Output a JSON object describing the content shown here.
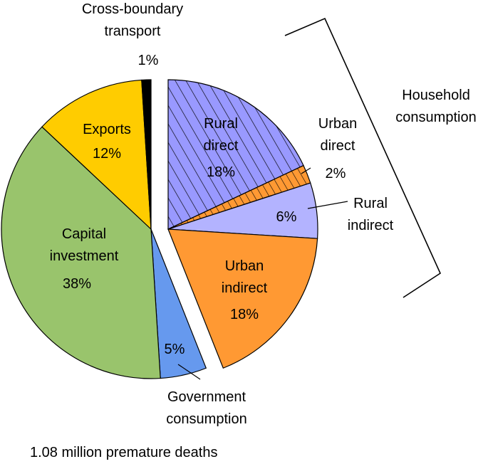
{
  "chart_data": {
    "type": "pie",
    "slices": [
      {
        "name": "Rural direct",
        "label_lines": [
          "Rural",
          "direct"
        ],
        "value_label": "18%",
        "value": 18,
        "color": "#9999ff",
        "pattern": "diagonal-hatch",
        "exploded": true
      },
      {
        "name": "Urban direct",
        "label_lines": [
          "Urban",
          "direct"
        ],
        "value_label": "2%",
        "value": 2,
        "color": "#ff9933",
        "pattern": "diagonal-hatch",
        "exploded": true
      },
      {
        "name": "Rural indirect",
        "label_lines": [
          "Rural",
          "indirect"
        ],
        "value_label": "6%",
        "value": 6,
        "color": "#b3b3ff",
        "pattern": "solid",
        "exploded": true
      },
      {
        "name": "Urban indirect",
        "label_lines": [
          "Urban",
          "indirect"
        ],
        "value_label": "18%",
        "value": 18,
        "color": "#ff9933",
        "pattern": "solid",
        "exploded": true
      },
      {
        "name": "Government consumption",
        "label_lines": [
          "Government",
          "consumption"
        ],
        "value_label": "5%",
        "value": 5,
        "color": "#6699ee",
        "pattern": "solid",
        "exploded": false
      },
      {
        "name": "Capital investment",
        "label_lines": [
          "Capital",
          "investment"
        ],
        "value_label": "38%",
        "value": 38,
        "color": "#99c46c",
        "pattern": "solid",
        "exploded": false
      },
      {
        "name": "Exports",
        "label_lines": [
          "Exports"
        ],
        "value_label": "12%",
        "value": 12,
        "color": "#ffcc00",
        "pattern": "solid",
        "exploded": false
      },
      {
        "name": "Cross-boundary transport",
        "label_lines": [
          "Cross-boundary",
          "transport"
        ],
        "value_label": "1%",
        "value": 1,
        "color": "#000000",
        "pattern": "solid",
        "exploded": false
      }
    ],
    "group_label": [
      "Household",
      "consumption"
    ],
    "caption": "1.08 million premature deaths"
  }
}
